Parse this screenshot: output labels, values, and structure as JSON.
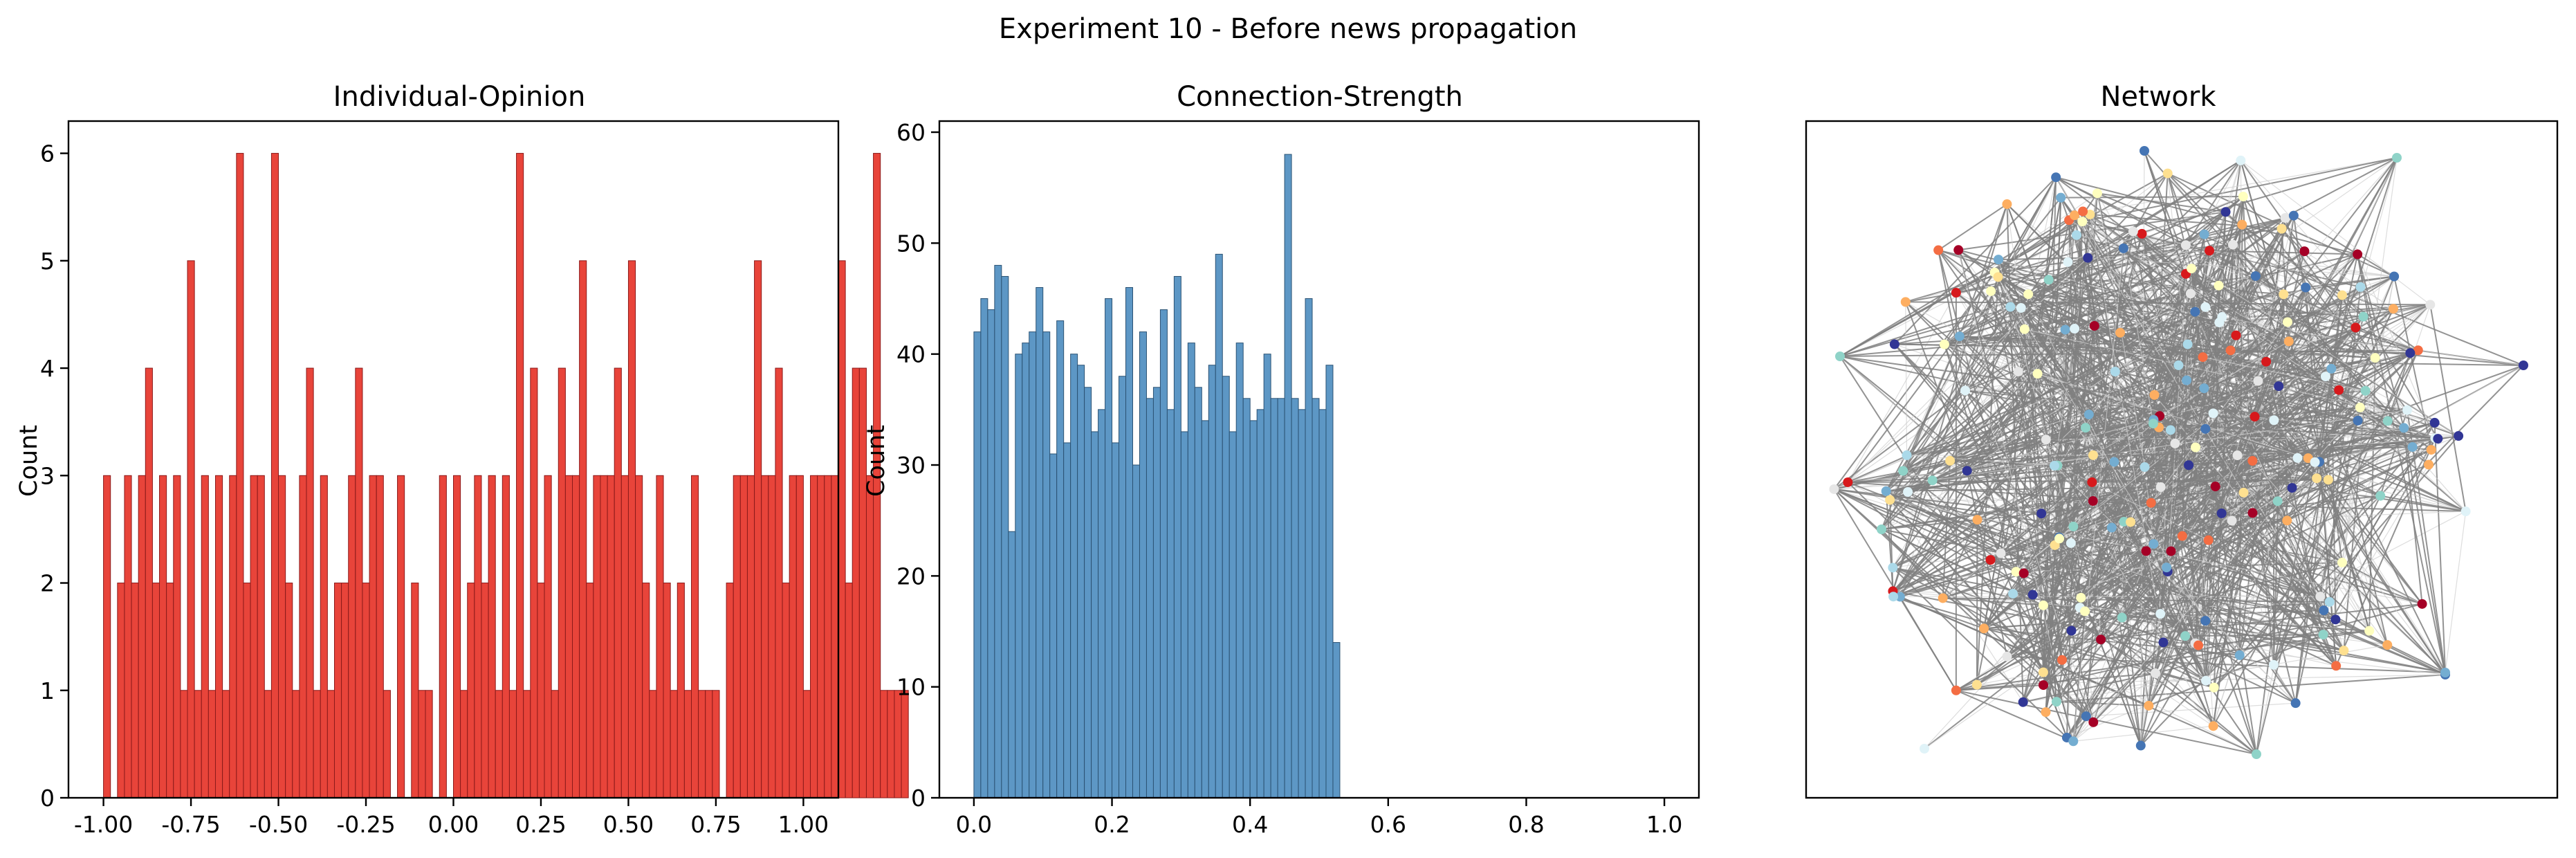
{
  "figure": {
    "title": "Experiment 10 - Before news propagation"
  },
  "chart_data": [
    {
      "type": "bar",
      "title": "Individual-Opinion",
      "xlabel": "",
      "ylabel": "Count",
      "xlim": [
        -1.1,
        1.1
      ],
      "ylim": [
        0,
        6.3
      ],
      "xticks": [
        "-1.00",
        "-0.75",
        "-0.50",
        "-0.25",
        "0.00",
        "0.25",
        "0.50",
        "0.75",
        "1.00"
      ],
      "xtick_values": [
        -1.0,
        -0.75,
        -0.5,
        -0.25,
        0.0,
        0.25,
        0.5,
        0.75,
        1.0
      ],
      "yticks": [
        "0",
        "1",
        "2",
        "3",
        "4",
        "5",
        "6"
      ],
      "ytick_values": [
        0,
        1,
        2,
        3,
        4,
        5,
        6
      ],
      "bin_start": -1.0,
      "bin_width": 0.02,
      "color": "#e8443a",
      "edgecolor": "#8b1a1a",
      "counts": [
        3,
        0,
        2,
        3,
        2,
        3,
        4,
        2,
        3,
        2,
        3,
        1,
        5,
        1,
        3,
        1,
        3,
        1,
        3,
        6,
        2,
        3,
        3,
        1,
        6,
        3,
        2,
        1,
        3,
        4,
        1,
        3,
        1,
        2,
        2,
        3,
        4,
        2,
        3,
        3,
        1,
        0,
        3,
        0,
        2,
        1,
        1,
        0,
        3,
        0,
        3,
        1,
        2,
        3,
        2,
        3,
        1,
        3,
        1,
        6,
        1,
        4,
        2,
        3,
        1,
        4,
        3,
        3,
        5,
        2,
        3,
        3,
        3,
        4,
        3,
        5,
        3,
        2,
        1,
        3,
        2,
        1,
        2,
        1,
        3,
        1,
        1,
        1,
        0,
        2,
        3,
        3,
        3,
        5,
        3,
        3,
        4,
        2,
        3,
        3,
        1,
        3,
        3,
        3,
        3,
        5,
        2,
        4,
        4,
        3,
        6,
        1,
        1,
        1,
        1
      ]
    },
    {
      "type": "bar",
      "title": "Connection-Strength",
      "xlabel": "",
      "ylabel": "Count",
      "xlim": [
        -0.05,
        1.05
      ],
      "ylim": [
        0,
        61
      ],
      "xticks": [
        "0.0",
        "0.2",
        "0.4",
        "0.6",
        "0.8",
        "1.0"
      ],
      "xtick_values": [
        0.0,
        0.2,
        0.4,
        0.6,
        0.8,
        1.0
      ],
      "yticks": [
        "0",
        "10",
        "20",
        "30",
        "40",
        "50",
        "60"
      ],
      "ytick_values": [
        0,
        10,
        20,
        30,
        40,
        50,
        60
      ],
      "bin_start": 0.0,
      "bin_width": 0.01,
      "color": "#5d97c5",
      "edgecolor": "#2b5273",
      "counts": [
        42,
        45,
        44,
        48,
        47,
        24,
        40,
        41,
        42,
        46,
        42,
        31,
        43,
        32,
        40,
        39,
        37,
        33,
        35,
        45,
        32,
        38,
        46,
        30,
        42,
        36,
        37,
        44,
        35,
        47,
        33,
        41,
        37,
        34,
        39,
        49,
        38,
        33,
        41,
        36,
        34,
        35,
        40,
        36,
        36,
        58,
        36,
        35,
        45,
        36,
        35,
        39,
        14
      ]
    },
    {
      "type": "scatter",
      "title": "Network",
      "xlabel": "",
      "ylabel": "",
      "legend": "none"
    }
  ]
}
